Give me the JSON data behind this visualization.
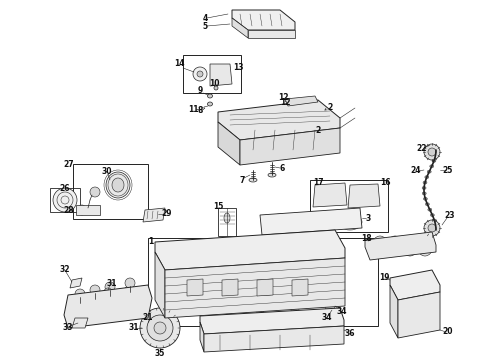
{
  "bg_color": "#ffffff",
  "lc": "#222222",
  "tc": "#111111",
  "fig_width": 4.9,
  "fig_height": 3.6,
  "dpi": 100,
  "labels": [
    [
      205,
      18,
      "4"
    ],
    [
      205,
      26,
      "5"
    ],
    [
      179,
      63,
      "14"
    ],
    [
      238,
      67,
      "13"
    ],
    [
      195,
      102,
      "11"
    ],
    [
      204,
      91,
      "9"
    ],
    [
      212,
      84,
      "10"
    ],
    [
      196,
      113,
      "8"
    ],
    [
      285,
      102,
      "12"
    ],
    [
      318,
      130,
      "2"
    ],
    [
      272,
      168,
      "6"
    ],
    [
      247,
      180,
      "7"
    ],
    [
      68,
      177,
      "27"
    ],
    [
      68,
      192,
      "26"
    ],
    [
      82,
      168,
      "30"
    ],
    [
      85,
      210,
      "28"
    ],
    [
      156,
      213,
      "29"
    ],
    [
      225,
      210,
      "15"
    ],
    [
      335,
      183,
      "17"
    ],
    [
      378,
      183,
      "16"
    ],
    [
      308,
      215,
      "3"
    ],
    [
      143,
      240,
      "1"
    ],
    [
      375,
      240,
      "18"
    ],
    [
      420,
      148,
      "22"
    ],
    [
      400,
      170,
      "24"
    ],
    [
      440,
      172,
      "25"
    ],
    [
      435,
      215,
      "23"
    ],
    [
      358,
      268,
      "21"
    ],
    [
      430,
      285,
      "19"
    ],
    [
      455,
      330,
      "20"
    ],
    [
      73,
      268,
      "32"
    ],
    [
      113,
      270,
      "31"
    ],
    [
      75,
      322,
      "33"
    ],
    [
      156,
      318,
      "21"
    ],
    [
      122,
      338,
      "31"
    ],
    [
      158,
      345,
      "35"
    ],
    [
      315,
      315,
      "34"
    ],
    [
      368,
      330,
      "36"
    ]
  ]
}
